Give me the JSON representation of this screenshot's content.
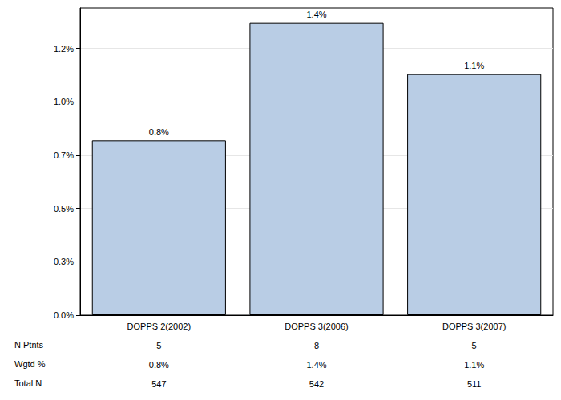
{
  "chart_data": {
    "type": "bar",
    "categories": [
      "DOPPS 2(2002)",
      "DOPPS 3(2006)",
      "DOPPS 3(2007)"
    ],
    "values": [
      0.82,
      1.37,
      1.13
    ],
    "value_labels": [
      "0.8%",
      "1.4%",
      "1.1%"
    ],
    "data_labels": true,
    "color": "#b9cde5",
    "ylim": [
      0,
      1.44
    ],
    "yticks": [
      {
        "value": 0,
        "label": "0.0%"
      },
      {
        "value": 0.25,
        "label": "0.3%"
      },
      {
        "value": 0.5,
        "label": "0.5%"
      },
      {
        "value": 0.75,
        "label": "0.7%"
      },
      {
        "value": 1.0,
        "label": "1.0%"
      },
      {
        "value": 1.25,
        "label": "1.2%"
      }
    ],
    "grid": true,
    "table": {
      "rows": [
        {
          "label": "N Ptnts",
          "cells": [
            5,
            8,
            5
          ]
        },
        {
          "label": "Wgtd %",
          "cells": [
            "0.8%",
            "1.4%",
            "1.1%"
          ]
        },
        {
          "label": "Total N",
          "cells": [
            547,
            542,
            511
          ]
        }
      ]
    }
  }
}
